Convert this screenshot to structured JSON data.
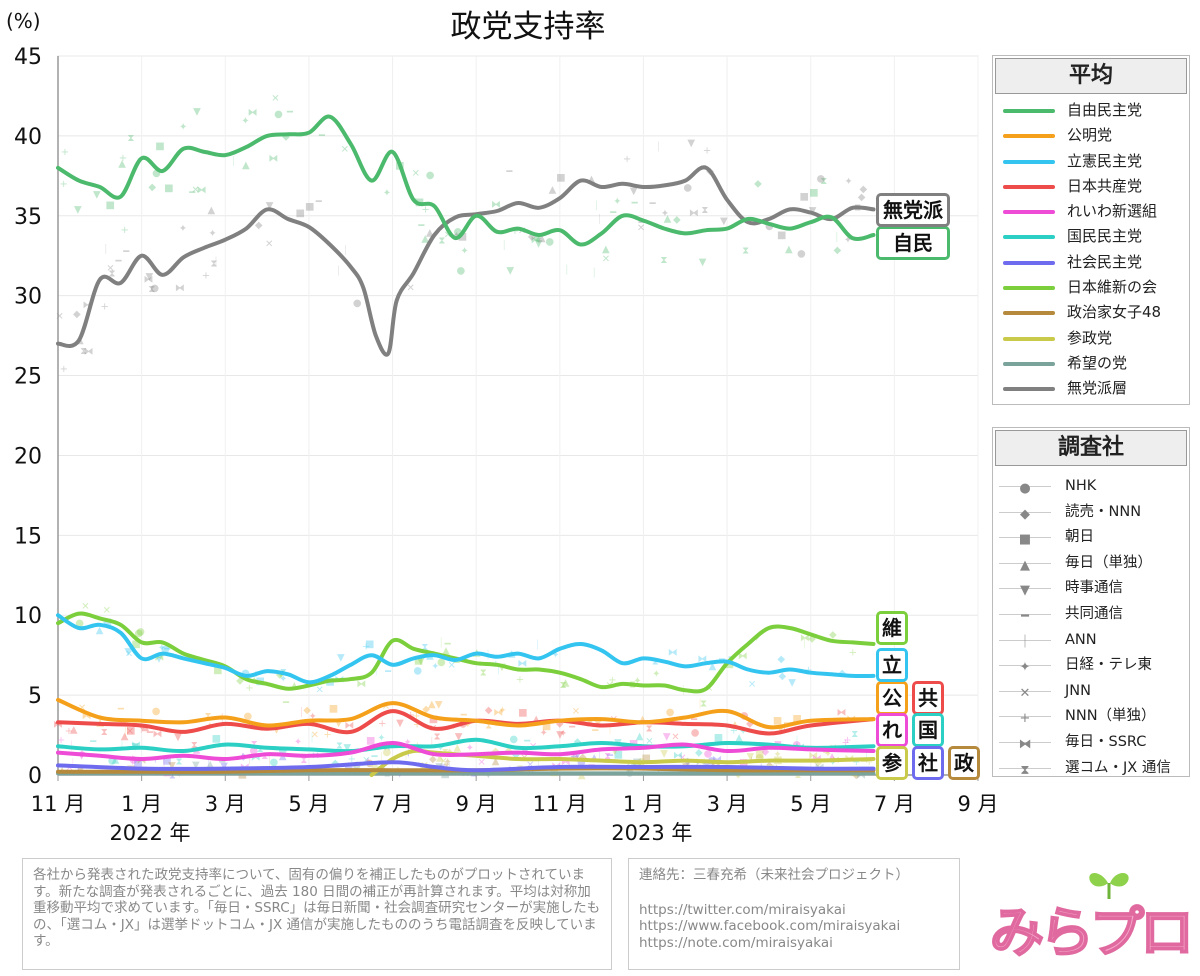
{
  "title": "政党支持率",
  "y_unit": "(%)",
  "chart_data": {
    "type": "line",
    "title": "政党支持率",
    "ylabel": "(%)",
    "ylim": [
      0,
      45
    ],
    "yticks": [
      0,
      5,
      10,
      15,
      20,
      25,
      30,
      35,
      40,
      45
    ],
    "xlim": [
      0,
      22
    ],
    "x_ticks": [
      {
        "x": 0,
        "label": "11 月"
      },
      {
        "x": 2,
        "label": "1 月"
      },
      {
        "x": 4,
        "label": "3 月"
      },
      {
        "x": 6,
        "label": "5 月"
      },
      {
        "x": 8,
        "label": "7 月"
      },
      {
        "x": 10,
        "label": "9 月"
      },
      {
        "x": 12,
        "label": "11 月"
      },
      {
        "x": 14,
        "label": "1 月"
      },
      {
        "x": 16,
        "label": "3 月"
      },
      {
        "x": 18,
        "label": "5 月"
      },
      {
        "x": 20,
        "label": "7 月"
      },
      {
        "x": 22,
        "label": "9 月"
      }
    ],
    "year_labels": [
      {
        "x": 2.2,
        "label": "2022 年"
      },
      {
        "x": 14.2,
        "label": "2023 年"
      }
    ],
    "grid": true,
    "series": [
      {
        "name": "自由民主党",
        "color": "#4cba6c",
        "tag": "自民",
        "x": [
          0,
          0.5,
          1,
          1.5,
          2,
          2.5,
          3,
          3.5,
          4,
          4.5,
          5,
          5.5,
          6,
          6.5,
          7,
          7.5,
          8,
          8.5,
          9,
          9.5,
          10,
          10.5,
          11,
          11.5,
          12,
          12.5,
          13,
          13.5,
          14,
          14.5,
          15,
          15.5,
          16,
          16.5,
          17,
          17.5,
          18,
          18.5,
          19,
          19.5
        ],
        "values": [
          38.0,
          37.2,
          36.8,
          36.2,
          38.6,
          37.8,
          39.2,
          39.0,
          38.8,
          39.3,
          40.0,
          40.1,
          40.2,
          41.2,
          39.5,
          37.2,
          39.0,
          36.0,
          35.6,
          33.6,
          35.0,
          34.0,
          34.2,
          33.8,
          34.1,
          33.2,
          33.9,
          35.0,
          34.7,
          34.2,
          33.9,
          34.1,
          34.2,
          34.8,
          34.5,
          34.2,
          34.6,
          34.9,
          33.6,
          33.8
        ]
      },
      {
        "name": "公明党",
        "color": "#f5a01a",
        "tag": "公",
        "x": [
          0,
          1,
          2,
          3,
          4,
          5,
          6,
          7,
          8,
          9,
          10,
          11,
          12,
          13,
          14,
          15,
          16,
          17,
          18,
          19.5
        ],
        "values": [
          4.7,
          3.6,
          3.4,
          3.3,
          3.6,
          3.1,
          3.4,
          3.5,
          4.5,
          3.6,
          3.4,
          3.1,
          3.4,
          3.5,
          3.3,
          3.6,
          4.0,
          3.0,
          3.4,
          3.5
        ]
      },
      {
        "name": "立憲民主党",
        "color": "#33c5f0",
        "tag": "立",
        "x": [
          0,
          0.5,
          1,
          1.5,
          2,
          2.5,
          3,
          3.5,
          4,
          4.5,
          5,
          5.5,
          6,
          6.5,
          7,
          7.5,
          8,
          8.5,
          9,
          9.5,
          10,
          10.5,
          11,
          11.5,
          12,
          12.5,
          13,
          13.5,
          14,
          14.5,
          15,
          15.5,
          16,
          16.5,
          17,
          17.5,
          18,
          18.5,
          19,
          19.5
        ],
        "values": [
          10.0,
          9.2,
          9.4,
          8.9,
          7.3,
          7.6,
          7.3,
          7.0,
          6.7,
          6.2,
          6.5,
          6.3,
          5.8,
          6.2,
          6.9,
          7.5,
          6.9,
          7.3,
          7.5,
          7.2,
          7.6,
          7.4,
          7.6,
          7.3,
          7.9,
          8.2,
          7.8,
          7.0,
          7.3,
          7.1,
          6.8,
          7.0,
          7.1,
          6.6,
          6.4,
          6.6,
          6.4,
          6.3,
          6.2,
          6.2
        ]
      },
      {
        "name": "日本共産党",
        "color": "#ee4b4b",
        "tag": "共",
        "x": [
          0,
          1,
          2,
          3,
          4,
          5,
          6,
          7,
          8,
          9,
          10,
          11,
          12,
          13,
          14,
          15,
          16,
          17,
          18,
          19.5
        ],
        "values": [
          3.3,
          3.2,
          3.1,
          2.7,
          3.2,
          2.9,
          3.2,
          2.7,
          4.0,
          2.9,
          3.4,
          3.2,
          3.4,
          3.1,
          3.3,
          3.2,
          3.1,
          2.6,
          3.1,
          3.5
        ]
      },
      {
        "name": "れいわ新選組",
        "color": "#ee4bd6",
        "tag": "れ",
        "x": [
          0,
          1,
          2,
          3,
          4,
          5,
          6,
          7,
          8,
          9,
          10,
          11,
          12,
          13,
          14,
          15,
          16,
          17,
          18,
          19.5
        ],
        "values": [
          1.4,
          1.2,
          1.0,
          1.2,
          1.0,
          1.3,
          1.2,
          1.4,
          2.0,
          1.3,
          1.3,
          1.4,
          1.3,
          1.6,
          1.7,
          1.9,
          1.5,
          1.7,
          1.6,
          1.5
        ]
      },
      {
        "name": "国民民主党",
        "color": "#2ccfc4",
        "tag": "国",
        "x": [
          0,
          1,
          2,
          3,
          4,
          5,
          6,
          7,
          8,
          9,
          10,
          11,
          12,
          13,
          14,
          15,
          16,
          17,
          18,
          19.5
        ],
        "values": [
          1.8,
          1.6,
          1.7,
          1.5,
          1.9,
          1.7,
          1.6,
          1.5,
          1.8,
          1.8,
          2.2,
          1.7,
          1.8,
          2.0,
          1.8,
          1.8,
          2.0,
          1.9,
          1.7,
          1.8
        ]
      },
      {
        "name": "社会民主党",
        "color": "#6f6bef",
        "tag": "社",
        "x": [
          0,
          2,
          4,
          6,
          8,
          9,
          10,
          12,
          14,
          16,
          18,
          19.5
        ],
        "values": [
          0.6,
          0.4,
          0.4,
          0.5,
          0.8,
          0.5,
          0.3,
          0.5,
          0.5,
          0.5,
          0.4,
          0.4
        ]
      },
      {
        "name": "日本維新の会",
        "color": "#7ccf3c",
        "tag": "維",
        "x": [
          0,
          0.5,
          1,
          1.5,
          2,
          2.5,
          3,
          3.5,
          4,
          4.5,
          5,
          5.5,
          6,
          6.5,
          7,
          7.5,
          8,
          8.5,
          9,
          9.5,
          10,
          10.5,
          11,
          11.5,
          12,
          12.5,
          13,
          13.5,
          14,
          14.5,
          15,
          15.5,
          16,
          16.5,
          17,
          17.5,
          18,
          18.5,
          19,
          19.5
        ],
        "values": [
          9.5,
          10.1,
          9.8,
          9.4,
          8.3,
          8.3,
          7.6,
          7.2,
          6.8,
          6.0,
          5.7,
          5.4,
          5.6,
          5.9,
          6.0,
          6.4,
          8.4,
          7.9,
          7.6,
          7.3,
          7.0,
          6.9,
          6.6,
          6.6,
          6.4,
          6.0,
          5.5,
          5.7,
          5.6,
          5.6,
          5.3,
          5.4,
          7.0,
          8.2,
          9.2,
          9.2,
          8.8,
          8.4,
          8.3,
          8.2
        ]
      },
      {
        "name": "政治家女子48",
        "color": "#b58a3d",
        "tag": "政",
        "x": [
          0,
          2,
          4,
          6,
          8,
          10,
          12,
          14,
          16,
          18,
          19.5
        ],
        "values": [
          0.2,
          0.2,
          0.2,
          0.3,
          0.3,
          0.3,
          0.4,
          0.4,
          0.3,
          0.3,
          0.3
        ]
      },
      {
        "name": "参政党",
        "color": "#c9c94a",
        "tag": "参",
        "x": [
          7.5,
          8,
          8.5,
          9,
          10,
          11,
          12,
          13,
          14,
          15,
          16,
          17,
          18,
          19.5
        ],
        "values": [
          0,
          1.0,
          1.5,
          1.4,
          1.2,
          1.0,
          1.0,
          0.9,
          0.8,
          0.9,
          0.8,
          0.9,
          0.9,
          1.0
        ]
      },
      {
        "name": "希望の党",
        "color": "#7aa39b",
        "tag": "",
        "x": [
          0,
          19.5
        ],
        "values": [
          0.1,
          0.1
        ]
      },
      {
        "name": "無党派層",
        "color": "#808080",
        "tag": "無党派",
        "x": [
          0,
          0.5,
          1,
          1.5,
          2,
          2.5,
          3,
          3.5,
          4,
          4.5,
          5,
          5.5,
          6,
          6.5,
          7,
          7.3,
          7.6,
          7.9,
          8.1,
          8.5,
          9,
          9.5,
          10,
          10.5,
          11,
          11.5,
          12,
          12.5,
          13,
          13.5,
          14,
          14.5,
          15,
          15.5,
          16,
          16.5,
          17,
          17.5,
          18,
          18.5,
          19,
          19.5
        ],
        "values": [
          27.0,
          27.2,
          31.0,
          30.8,
          32.5,
          31.3,
          32.4,
          33.0,
          33.5,
          34.2,
          35.4,
          34.8,
          34.3,
          33.2,
          31.8,
          30.5,
          27.5,
          26.4,
          29.7,
          31.4,
          33.8,
          34.9,
          35.1,
          35.3,
          35.8,
          35.5,
          36.1,
          37.2,
          36.8,
          37.0,
          36.8,
          36.9,
          37.2,
          38.0,
          36.0,
          34.6,
          34.8,
          35.4,
          35.2,
          34.8,
          35.5,
          35.4
        ]
      }
    ]
  },
  "legend_avg": {
    "title": "平均"
  },
  "legend_src": {
    "title": "調査社",
    "items": [
      {
        "name": "NHK",
        "marker": "●"
      },
      {
        "name": "読売・NNN",
        "marker": "◆"
      },
      {
        "name": "朝日",
        "marker": "■"
      },
      {
        "name": "毎日（単独）",
        "marker": "▲"
      },
      {
        "name": "時事通信",
        "marker": "▼"
      },
      {
        "name": "共同通信",
        "marker": "━"
      },
      {
        "name": "ANN",
        "marker": "｜"
      },
      {
        "name": "日経・テレ東",
        "marker": "✦"
      },
      {
        "name": "JNN",
        "marker": "✕"
      },
      {
        "name": "NNN（単独）",
        "marker": "+"
      },
      {
        "name": "毎日・SSRC",
        "marker": "⧓"
      },
      {
        "name": "選コム・JX 通信",
        "marker": "⧗"
      }
    ]
  },
  "footnote": "各社から発表された政党支持率について、固有の偏りを補正したものがプロットされています。新たな調査が発表されるごとに、過去 180 日間の補正が再計算されます。平均は対称加重移動平均で求めています。「毎日・SSRC」は毎日新聞・社会調査研究センターが実施したもの、「選コム・JX」は選挙ドットコム・JX 通信が実施したもののうち電話調査を反映しています。",
  "contact": {
    "label": "連絡先：三春充希（未来社会プロジェクト）",
    "links": [
      "https://twitter.com/miraisyakai",
      "https://www.facebook.com/miraisyakai",
      "https://note.com/miraisyakai"
    ]
  },
  "logo": "みらプロ",
  "colors": {
    "grid": "#e8e8e8",
    "axis": "#999999"
  }
}
